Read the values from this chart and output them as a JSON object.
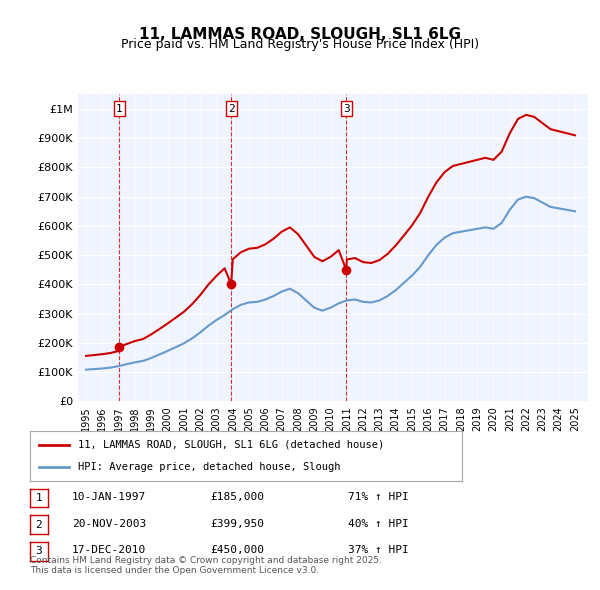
{
  "title": "11, LAMMAS ROAD, SLOUGH, SL1 6LG",
  "subtitle": "Price paid vs. HM Land Registry's House Price Index (HPI)",
  "legend_line1": "11, LAMMAS ROAD, SLOUGH, SL1 6LG (detached house)",
  "legend_line2": "HPI: Average price, detached house, Slough",
  "sale_dates": [
    1997.03,
    2003.9,
    2010.96
  ],
  "sale_prices": [
    185000,
    399950,
    450000
  ],
  "sale_labels": [
    "1",
    "2",
    "3"
  ],
  "table_rows": [
    [
      "1",
      "10-JAN-1997",
      "£185,000",
      "71% ↑ HPI"
    ],
    [
      "2",
      "20-NOV-2003",
      "£399,950",
      "40% ↑ HPI"
    ],
    [
      "3",
      "17-DEC-2010",
      "£450,000",
      "37% ↑ HPI"
    ]
  ],
  "footer": "Contains HM Land Registry data © Crown copyright and database right 2025.\nThis data is licensed under the Open Government Licence v3.0.",
  "red_color": "#cc0000",
  "blue_color": "#6699cc",
  "background_color": "#f0f4ff",
  "plot_bg_color": "#f0f4ff",
  "ylim": [
    0,
    1050000
  ],
  "xlim_start": 1994.5,
  "xlim_end": 2025.8,
  "yticks": [
    0,
    100000,
    200000,
    300000,
    400000,
    500000,
    600000,
    700000,
    800000,
    900000,
    1000000
  ],
  "ytick_labels": [
    "£0",
    "£100K",
    "£200K",
    "£300K",
    "£400K",
    "£500K",
    "£600K",
    "£700K",
    "£800K",
    "£900K",
    "£1M"
  ]
}
